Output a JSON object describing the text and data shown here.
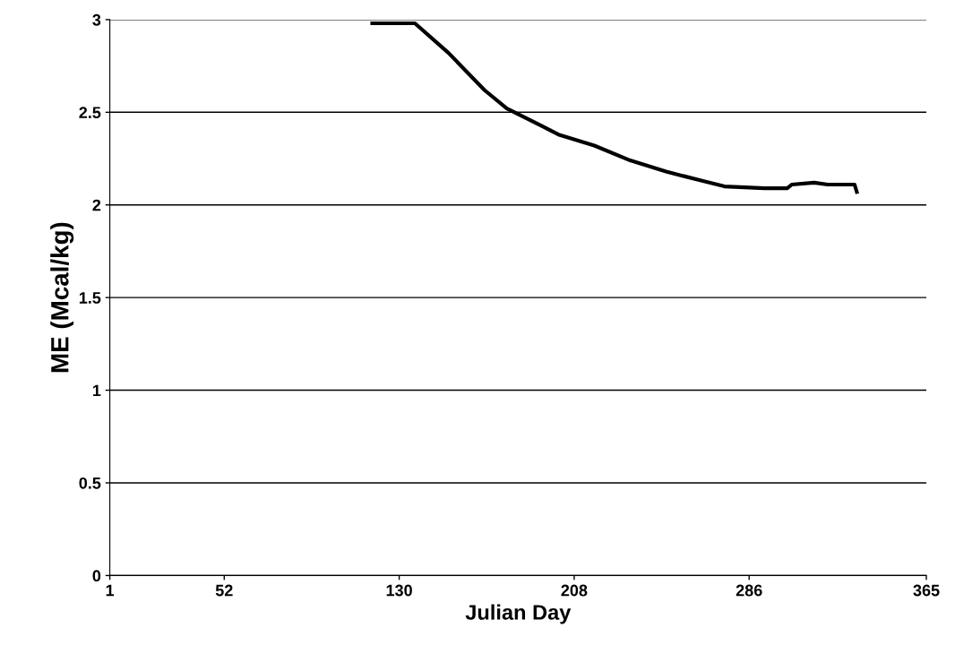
{
  "chart_data": {
    "type": "line",
    "xlabel": "Julian Day",
    "ylabel": "ME (Mcal/kg)",
    "xlim": [
      1,
      365
    ],
    "xticks": [
      1,
      52,
      130,
      208,
      286,
      365
    ],
    "ylim": [
      0,
      3
    ],
    "yticks": [
      0,
      0.5,
      1,
      1.5,
      2,
      2.5,
      3
    ],
    "grid": "y",
    "legend": false,
    "marker": "none",
    "line_style": "solid",
    "series": [
      {
        "color": "#000000",
        "x": [
          118,
          137,
          152,
          168,
          178,
          193,
          201,
          217,
          233,
          249,
          265,
          275,
          293,
          303,
          305,
          315,
          321,
          333,
          334
        ],
        "values": [
          2.98,
          2.98,
          2.82,
          2.62,
          2.52,
          2.43,
          2.38,
          2.32,
          2.24,
          2.18,
          2.13,
          2.1,
          2.09,
          2.09,
          2.11,
          2.12,
          2.11,
          2.11,
          2.07
        ]
      }
    ]
  }
}
